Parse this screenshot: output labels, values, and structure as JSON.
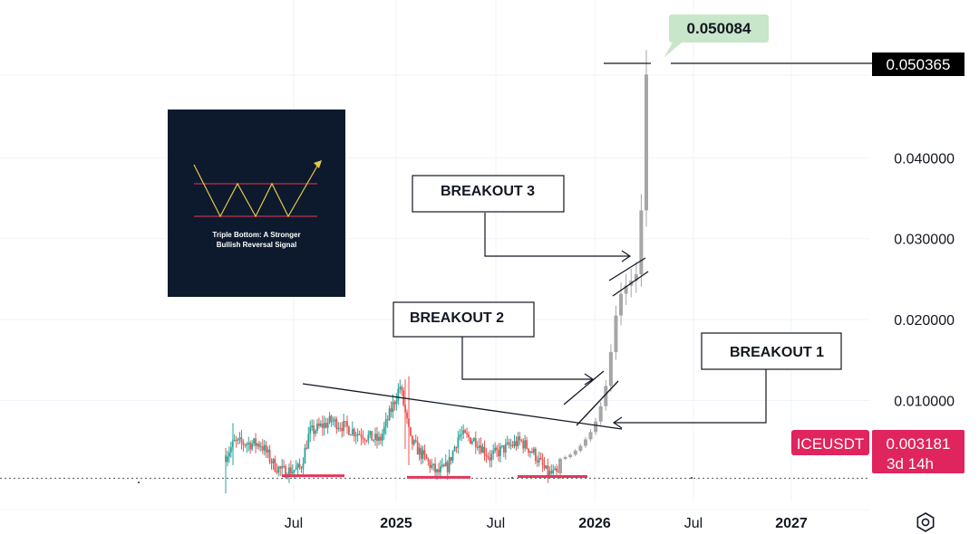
{
  "chart_data": {
    "type": "candlestick",
    "symbol": "ICEUSDT",
    "last_price": "0.003181",
    "countdown": "3d 14h",
    "y_axis": {
      "ticks": [
        "0.010000",
        "0.020000",
        "0.030000",
        "0.040000"
      ],
      "tick_values": [
        0.01,
        0.02,
        0.03,
        0.04
      ],
      "range": [
        -0.0065,
        0.0595
      ]
    },
    "x_axis": {
      "ticks": [
        {
          "label": "Jul",
          "bold": false
        },
        {
          "label": "2025",
          "bold": true
        },
        {
          "label": "Jul",
          "bold": false
        },
        {
          "label": "2026",
          "bold": true
        },
        {
          "label": "Jul",
          "bold": false
        },
        {
          "label": "2027",
          "bold": true
        }
      ]
    },
    "history_series": {
      "name": "ICEUSDT",
      "start_close": 0.0032,
      "mean_close": 0.0051,
      "range": [
        0.0009,
        0.0128
      ]
    },
    "projection_series": {
      "closes": [
        0.0028,
        0.003,
        0.0033,
        0.0038,
        0.0044,
        0.0052,
        0.0061,
        0.0074,
        0.0093,
        0.0118,
        0.016,
        0.0205,
        0.0232,
        0.0242,
        0.0248,
        0.0256,
        0.0335,
        0.0503
      ]
    },
    "target_price": "0.050084",
    "projected_price_line": "0.050365",
    "support_lines": [
      {
        "value": 0.0007,
        "from": "Jul",
        "to": "2025"
      },
      {
        "value": 0.0005,
        "from": "2025",
        "to": "Jul"
      },
      {
        "value": 0.0006,
        "from": "Jul",
        "to": "2026"
      }
    ],
    "annotations": {
      "breakout_1": "BREAKOUT 1",
      "breakout_2": "BREAKOUT 2",
      "breakout_3": "BREAKOUT 3"
    },
    "inset": {
      "caption_line1": "Triple Bottom: A Stronger",
      "caption_line2": "Bullish Reversal Signal"
    },
    "colors": {
      "up": "#26a69a",
      "down": "#ef5350",
      "projection": "#a6a6a6",
      "support": "#e03a5c",
      "symbol_tag": "#e0245e",
      "target_tag": "#c8e6c9",
      "price_tag": "#000000"
    }
  },
  "settings_icon": "settings-gear-icon"
}
